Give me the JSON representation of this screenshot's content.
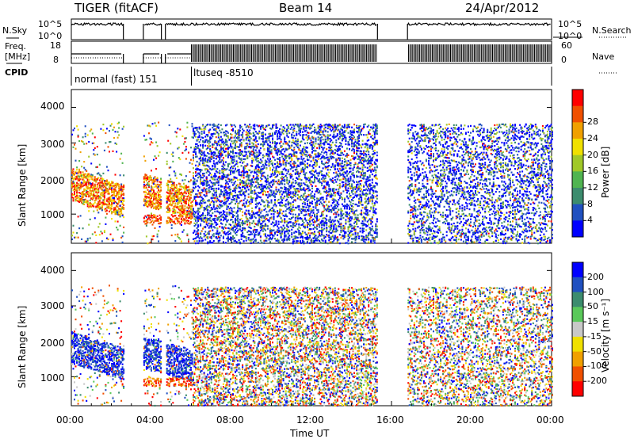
{
  "header": {
    "radar": "TIGER (fitACF)",
    "beam": "Beam 14",
    "date": "24/Apr/2012"
  },
  "noise_panel": {
    "left_label": "N.Sky",
    "right_label": "N.Search",
    "ticks_left": [
      "10^5",
      "10^0"
    ],
    "ticks_right": [
      "10^5",
      "10^0"
    ]
  },
  "freq_panel": {
    "left_label_line1": "Freq.",
    "left_label_line2": "[MHz]",
    "right_label": "Nave",
    "ticks_left": [
      "18",
      "8"
    ],
    "ticks_right": [
      "60",
      "0"
    ]
  },
  "cpid": {
    "label": "CPID",
    "segments": [
      {
        "text": "normal (fast) 151",
        "start_hour": 0.0
      },
      {
        "text": "ltuseq -8510",
        "start_hour": 6.0
      }
    ]
  },
  "data_gaps_ut_hours": [
    [
      2.6,
      3.6
    ],
    [
      4.5,
      4.7
    ],
    [
      15.3,
      16.8
    ]
  ],
  "x_axis": {
    "label": "Time UT",
    "range_hours": [
      0,
      24
    ],
    "tick_labels": [
      "00:00",
      "04:00",
      "08:00",
      "12:00",
      "16:00",
      "20:00",
      "00:00"
    ]
  },
  "panels": [
    {
      "id": "power",
      "ylabel": "Slant Range [km]",
      "yticks": [
        "1000",
        "2000",
        "3000",
        "4000"
      ],
      "colorbar_label": "Power [dB]",
      "colorbar_ticks": [
        "4",
        "8",
        "12",
        "16",
        "20",
        "24",
        "28"
      ],
      "colors": [
        "#0000ff",
        "#2050c0",
        "#3c8c6e",
        "#50b450",
        "#a0c828",
        "#f0e000",
        "#f0a000",
        "#f05000",
        "#ff0000"
      ]
    },
    {
      "id": "velocity",
      "ylabel": "Slant Range [km]",
      "yticks": [
        "1000",
        "2000",
        "3000",
        "4000"
      ],
      "colorbar_label": "Velocity [m s⁻¹]",
      "colorbar_ticks": [
        "200",
        "100",
        "50",
        "15",
        "-15",
        "-50",
        "-100",
        "-200"
      ],
      "colors": [
        "#0000ff",
        "#2050c0",
        "#3c8c6e",
        "#5ac85a",
        "#c8c8c8",
        "#f0e000",
        "#f0a000",
        "#f05000",
        "#ff0000"
      ]
    }
  ],
  "chart_data": {
    "type": "heatmap",
    "title": "TIGER (fitACF)",
    "subtitle": "Beam 14",
    "date": "24/Apr/2012",
    "xlabel": "Time UT",
    "xlim_hours": [
      0,
      24
    ],
    "ylabel": "Slant Range [km]",
    "ylim_km": [
      180,
      4500
    ],
    "series": [
      {
        "name": "Power [dB]",
        "range": [
          0,
          30
        ]
      },
      {
        "name": "Velocity [m s⁻¹]",
        "range": [
          -250,
          250
        ]
      }
    ],
    "legend": "right"
  }
}
